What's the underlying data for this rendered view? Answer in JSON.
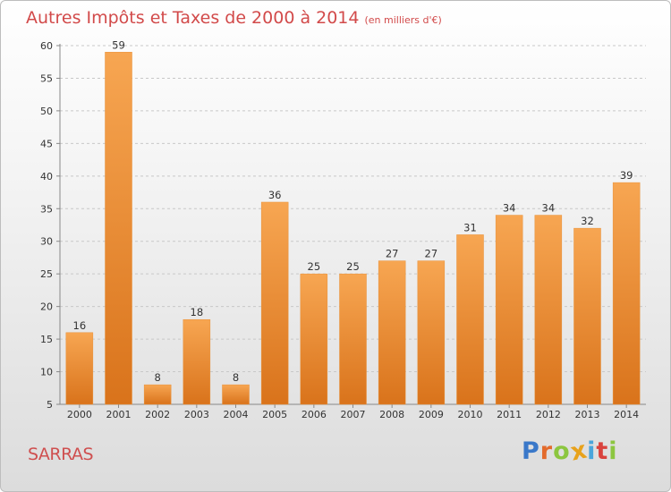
{
  "chart_data": {
    "type": "bar",
    "title": "Autres Impôts et Taxes de 2000 à 2014",
    "subtitle": "(en milliers d'€)",
    "categories": [
      "2000",
      "2001",
      "2002",
      "2003",
      "2004",
      "2005",
      "2006",
      "2007",
      "2008",
      "2009",
      "2010",
      "2011",
      "2012",
      "2013",
      "2014"
    ],
    "values": [
      16,
      59,
      8,
      18,
      8,
      36,
      25,
      25,
      27,
      27,
      31,
      34,
      34,
      32,
      39
    ],
    "ylim": [
      5,
      60
    ],
    "yticks": [
      5,
      10,
      15,
      20,
      25,
      30,
      35,
      40,
      45,
      50,
      55,
      60
    ],
    "grid": true,
    "bar_color": "#f0922f"
  },
  "commune": "SARRAS",
  "logo": {
    "letters": [
      "P",
      "r",
      "o",
      "x",
      "i",
      "t",
      "i"
    ],
    "colors": [
      "#3a78c9",
      "#e36b2c",
      "#8cc63f",
      "#e8a21c",
      "#4aa5dc",
      "#d9433e",
      "#8cc63f"
    ]
  }
}
